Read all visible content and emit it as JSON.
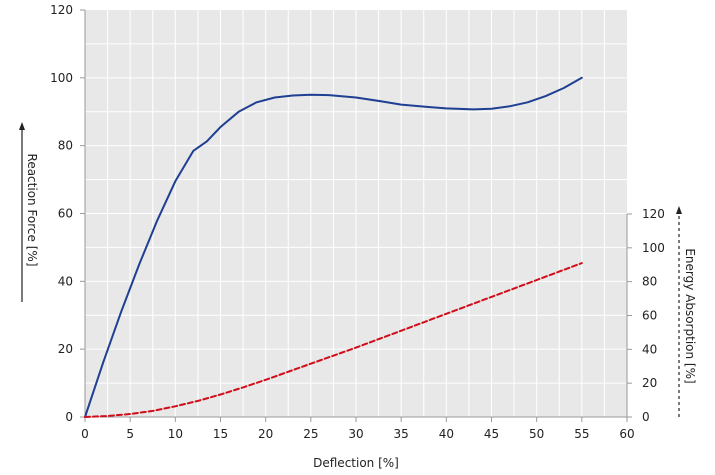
{
  "chart_data": {
    "type": "line",
    "xlabel": "Deflection [%]",
    "ylabel_left": "Reaction Force [%]",
    "ylabel_right": "Energy Absorption [%]",
    "xlim": [
      0,
      60
    ],
    "ylim_left": [
      0,
      120
    ],
    "ylim_right": [
      0,
      120
    ],
    "x_ticks": [
      0,
      5,
      10,
      15,
      20,
      25,
      30,
      35,
      40,
      45,
      50,
      55,
      60
    ],
    "y_ticks_left": [
      0,
      20,
      40,
      60,
      80,
      100,
      120
    ],
    "y_ticks_right": [
      0,
      20,
      40,
      60,
      80,
      100,
      120
    ],
    "grid": true,
    "series": [
      {
        "axis": "left",
        "style": "solid",
        "color": "#1f3f93",
        "x": [
          0,
          2,
          4,
          6,
          8,
          10,
          12,
          13.5,
          15,
          17,
          19,
          21,
          23,
          25,
          27,
          30,
          33,
          35,
          38,
          40,
          43,
          45,
          47,
          49,
          51,
          53,
          55
        ],
        "y": [
          0,
          16,
          31,
          45,
          58,
          69.5,
          78.5,
          81.3,
          85.5,
          90,
          92.8,
          94.2,
          94.8,
          95,
          94.9,
          94.2,
          93,
          92.1,
          91.4,
          91,
          90.7,
          90.9,
          91.6,
          92.8,
          94.6,
          97,
          100
        ]
      },
      {
        "axis": "right",
        "style": "dashed",
        "color": "#d10d1a",
        "x": [
          0,
          2.5,
          5,
          7.5,
          10,
          12.5,
          15,
          17.5,
          20,
          25,
          30,
          35,
          40,
          45,
          50,
          55
        ],
        "y": [
          0,
          0.6,
          1.8,
          3.6,
          6.3,
          9.5,
          13.3,
          17.5,
          22,
          31.5,
          41,
          51,
          61,
          71,
          81,
          91
        ]
      }
    ]
  },
  "colors": {
    "plot_background": "#e8e8e8",
    "grid": "#ffffff",
    "axis": "#9a9a9a",
    "text": "#222222"
  }
}
